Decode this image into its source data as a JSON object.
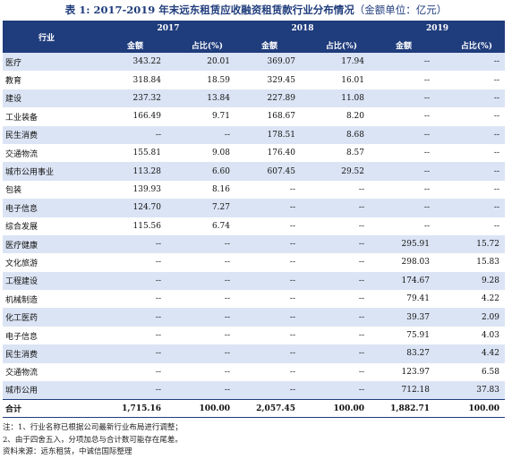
{
  "title": {
    "main": "表 1: 2017-2019 年末远东租赁应收融资租赁款行业分布情况",
    "unit": "（金额单位：亿元）"
  },
  "header": {
    "industry": "行业",
    "years": [
      "2017",
      "2018",
      "2019"
    ],
    "amount": "金额",
    "pct": "占比(%)"
  },
  "rows": [
    {
      "name": "医疗",
      "v": [
        "343.22",
        "20.01",
        "369.07",
        "17.94",
        "--",
        "--"
      ]
    },
    {
      "name": "教育",
      "v": [
        "318.84",
        "18.59",
        "329.45",
        "16.01",
        "--",
        "--"
      ]
    },
    {
      "name": "建设",
      "v": [
        "237.32",
        "13.84",
        "227.89",
        "11.08",
        "--",
        "--"
      ]
    },
    {
      "name": "工业装备",
      "v": [
        "166.49",
        "9.71",
        "168.67",
        "8.20",
        "--",
        "--"
      ]
    },
    {
      "name": "民生消费",
      "v": [
        "--",
        "--",
        "178.51",
        "8.68",
        "--",
        "--"
      ]
    },
    {
      "name": "交通物流",
      "v": [
        "155.81",
        "9.08",
        "176.40",
        "8.57",
        "--",
        "--"
      ]
    },
    {
      "name": "城市公用事业",
      "v": [
        "113.28",
        "6.60",
        "607.45",
        "29.52",
        "--",
        "--"
      ]
    },
    {
      "name": "包装",
      "v": [
        "139.93",
        "8.16",
        "--",
        "--",
        "--",
        "--"
      ]
    },
    {
      "name": "电子信息",
      "v": [
        "124.70",
        "7.27",
        "--",
        "--",
        "--",
        "--"
      ]
    },
    {
      "name": "综合发展",
      "v": [
        "115.56",
        "6.74",
        "--",
        "--",
        "--",
        "--"
      ]
    },
    {
      "name": "医疗健康",
      "v": [
        "--",
        "--",
        "--",
        "--",
        "295.91",
        "15.72"
      ]
    },
    {
      "name": "文化旅游",
      "v": [
        "--",
        "--",
        "--",
        "--",
        "298.03",
        "15.83"
      ]
    },
    {
      "name": "工程建设",
      "v": [
        "--",
        "--",
        "--",
        "--",
        "174.67",
        "9.28"
      ]
    },
    {
      "name": "机械制造",
      "v": [
        "--",
        "--",
        "--",
        "--",
        "79.41",
        "4.22"
      ]
    },
    {
      "name": "化工医药",
      "v": [
        "--",
        "--",
        "--",
        "--",
        "39.37",
        "2.09"
      ]
    },
    {
      "name": "电子信息",
      "v": [
        "--",
        "--",
        "--",
        "--",
        "75.91",
        "4.03"
      ]
    },
    {
      "name": "民生消费",
      "v": [
        "--",
        "--",
        "--",
        "--",
        "83.27",
        "4.42"
      ]
    },
    {
      "name": "交通物流",
      "v": [
        "--",
        "--",
        "--",
        "--",
        "123.97",
        "6.58"
      ]
    },
    {
      "name": "城市公用",
      "v": [
        "--",
        "--",
        "--",
        "--",
        "712.18",
        "37.83"
      ]
    }
  ],
  "total": {
    "name": "合计",
    "v": [
      "1,715.16",
      "100.00",
      "2,057.45",
      "100.00",
      "1,882.71",
      "100.00"
    ]
  },
  "notes": [
    "注：1、行业名称已根据公司最新行业布局进行调整；",
    "2、由于四舍五入，分项加总与合计数可能存在尾差。",
    "资料来源：远东租赁，中诚信国际整理"
  ],
  "colors": {
    "header_bg": "#1f3c7c",
    "stripe": "#dbe4f4"
  }
}
